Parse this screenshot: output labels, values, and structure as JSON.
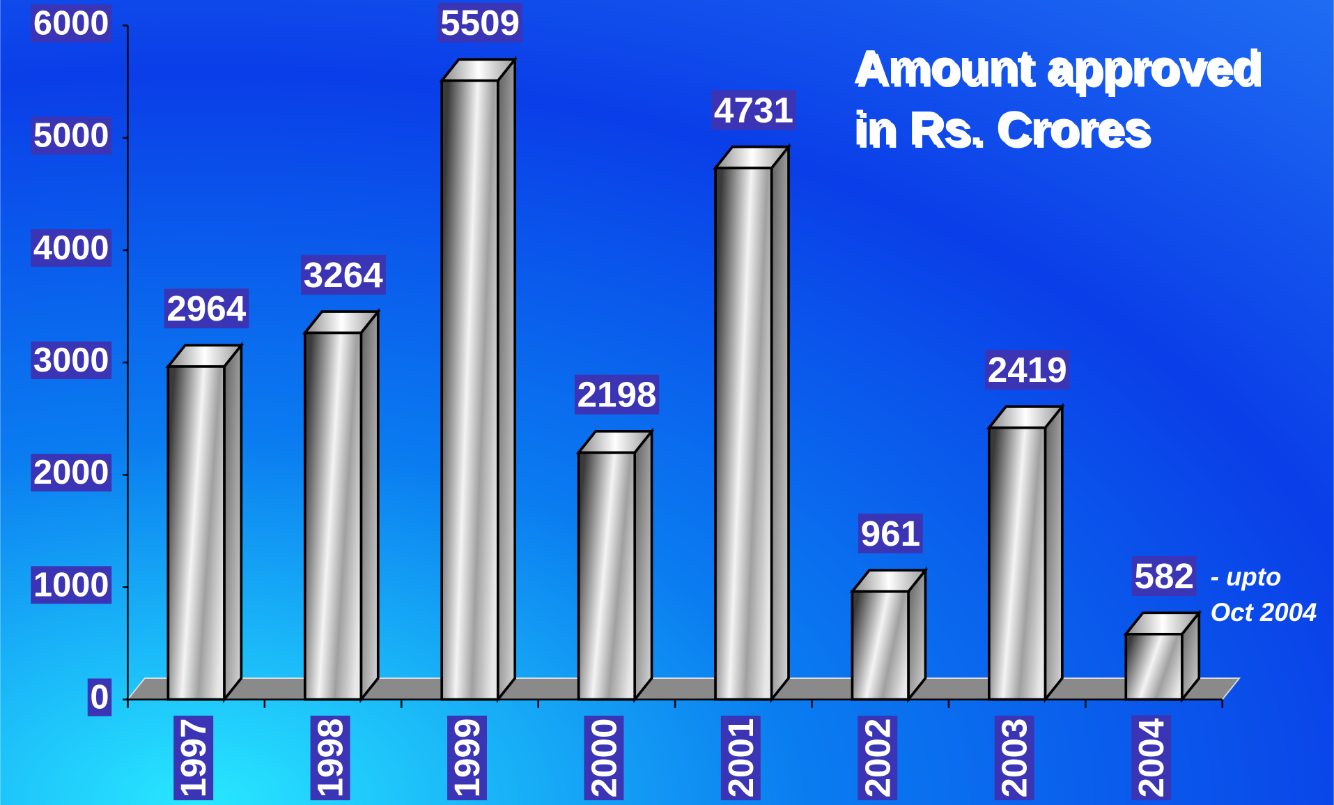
{
  "chart_data": {
    "type": "bar3d",
    "title_lines": [
      "Amount approved",
      "in Rs. Crores"
    ],
    "categories": [
      "1997",
      "1998",
      "1999",
      "2000",
      "2001",
      "2002",
      "2003",
      "2004"
    ],
    "values": [
      2964,
      3264,
      5509,
      2198,
      4731,
      961,
      2419,
      582
    ],
    "annotation_lines": [
      "- upto",
      "Oct 2004"
    ],
    "ylim": [
      0,
      6000
    ],
    "yticks": [
      0,
      1000,
      2000,
      3000,
      4000,
      5000,
      6000
    ],
    "color": "#c8c8c8",
    "label_box_color": "#3b35b5",
    "title_color": "#ffff00"
  }
}
